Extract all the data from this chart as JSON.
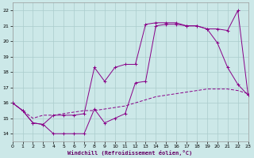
{
  "xlabel": "Windchill (Refroidissement éolien,°C)",
  "xlim": [
    0,
    23
  ],
  "ylim": [
    13.5,
    22.5
  ],
  "yticks": [
    14,
    15,
    16,
    17,
    18,
    19,
    20,
    21,
    22
  ],
  "xticks": [
    0,
    1,
    2,
    3,
    4,
    5,
    6,
    7,
    8,
    9,
    10,
    11,
    12,
    13,
    14,
    15,
    16,
    17,
    18,
    19,
    20,
    21,
    22,
    23
  ],
  "bg_color": "#cce8e8",
  "grid_color": "#aacccc",
  "line_color": "#880088",
  "series1_x": [
    0,
    1,
    2,
    3,
    4,
    5,
    6,
    7,
    8,
    9,
    10,
    11,
    12,
    13,
    14,
    15,
    16,
    17,
    18,
    19,
    20,
    21,
    22,
    23
  ],
  "series1_y": [
    16.0,
    15.5,
    14.7,
    14.6,
    14.0,
    14.0,
    14.0,
    14.0,
    15.6,
    14.7,
    15.0,
    15.3,
    17.3,
    17.4,
    21.0,
    21.1,
    21.1,
    21.0,
    21.0,
    20.8,
    19.9,
    18.3,
    17.2,
    16.5
  ],
  "series2_x": [
    0,
    1,
    2,
    3,
    4,
    5,
    6,
    7,
    8,
    9,
    10,
    11,
    12,
    13,
    14,
    15,
    16,
    17,
    18,
    19,
    20,
    21,
    22,
    23
  ],
  "series2_y": [
    16.0,
    15.5,
    14.7,
    14.6,
    15.2,
    15.2,
    15.2,
    15.3,
    18.3,
    17.4,
    18.3,
    18.5,
    18.5,
    21.1,
    21.2,
    21.2,
    21.2,
    21.0,
    21.0,
    20.8,
    20.8,
    20.7,
    22.0,
    16.5
  ],
  "series3_x": [
    0,
    1,
    2,
    3,
    4,
    5,
    6,
    7,
    8,
    9,
    10,
    11,
    12,
    13,
    14,
    15,
    16,
    17,
    18,
    19,
    20,
    21,
    22,
    23
  ],
  "series3_y": [
    16.0,
    15.5,
    15.0,
    15.2,
    15.2,
    15.3,
    15.4,
    15.5,
    15.5,
    15.6,
    15.7,
    15.8,
    16.0,
    16.2,
    16.4,
    16.5,
    16.6,
    16.7,
    16.8,
    16.9,
    16.9,
    16.9,
    16.8,
    16.6
  ]
}
